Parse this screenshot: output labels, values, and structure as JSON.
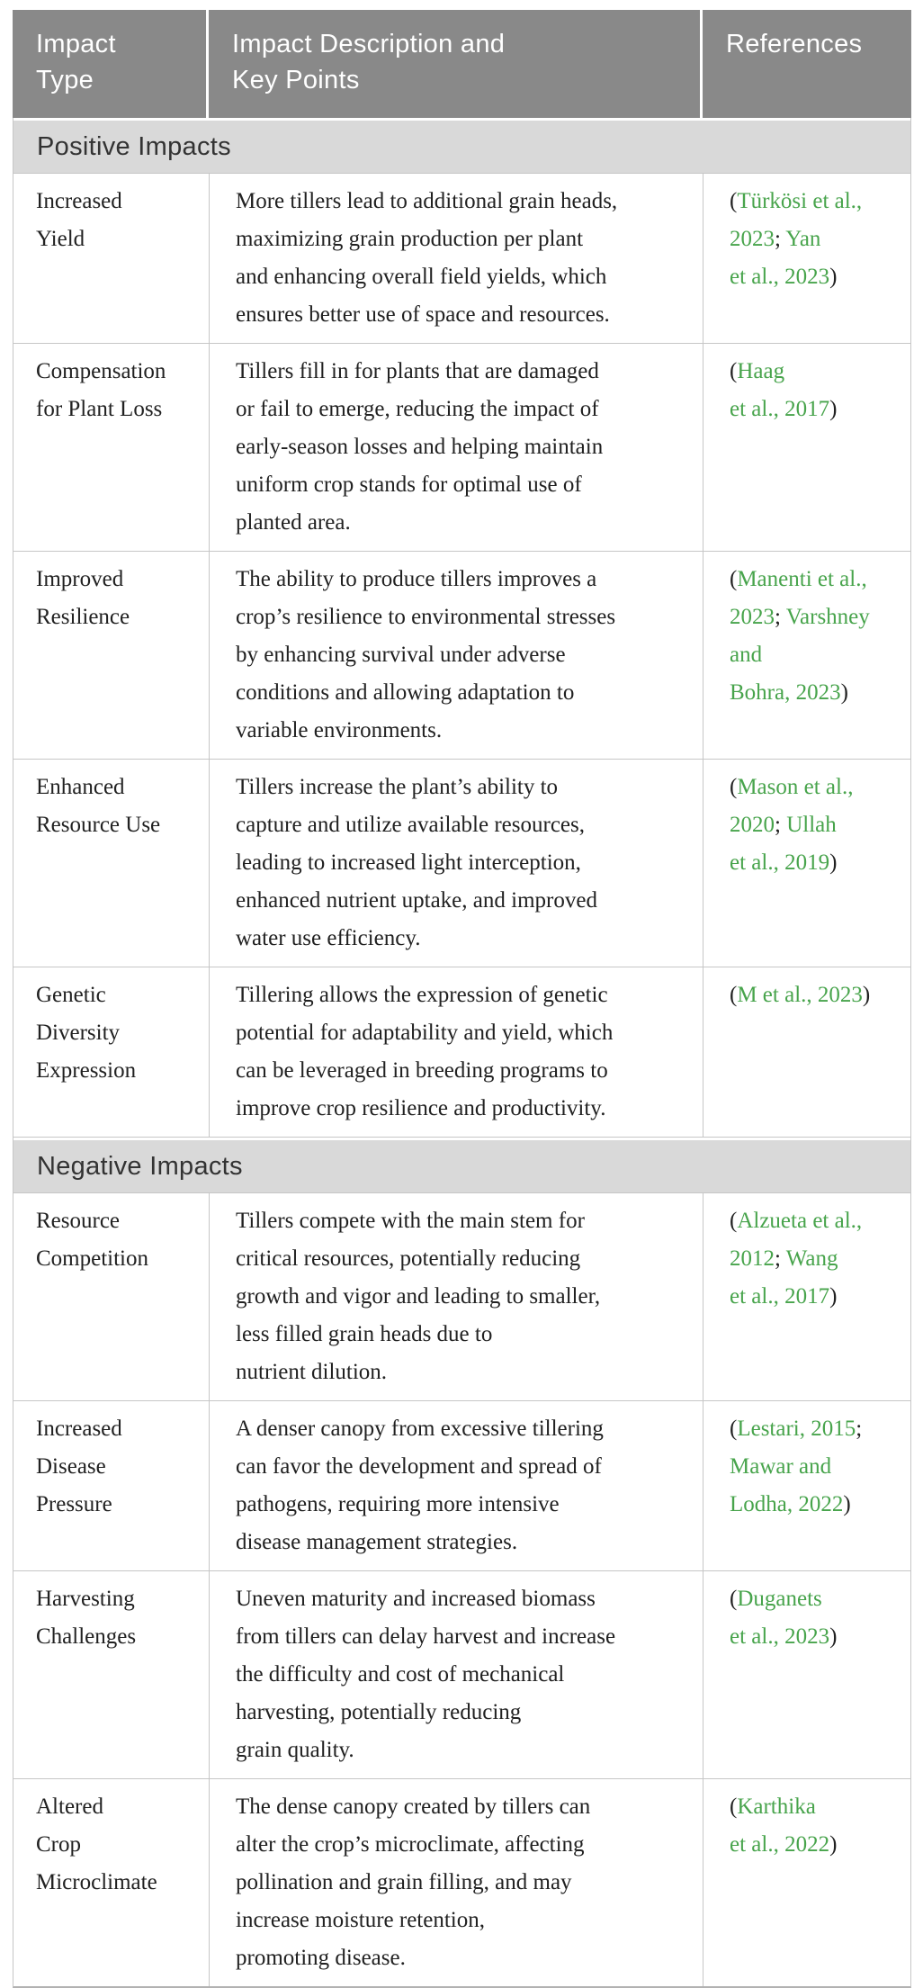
{
  "table": {
    "colors": {
      "header_bg": "#898989",
      "header_text": "#ffffff",
      "section_bg": "#d9d9d9",
      "section_text": "#333333",
      "body_text": "#212121",
      "link_green": "#48a44c",
      "border": "#c6c6c6"
    },
    "columns": [
      {
        "label": "Impact\nType"
      },
      {
        "label": "Impact Description and\nKey Points"
      },
      {
        "label": "References"
      }
    ],
    "sections": [
      {
        "title": "Positive Impacts",
        "rows": [
          {
            "impact_type": "Increased\nYield",
            "description": "More tillers lead to additional grain heads,\nmaximizing grain production per plant\nand enhancing overall field yields, which\nensures better use of space and resources.",
            "reference_segments": [
              {
                "text": "(",
                "link": false
              },
              {
                "text": "Türkösi et al.,\n2023",
                "link": true
              },
              {
                "text": "; ",
                "link": false
              },
              {
                "text": "Yan\net al., 2023",
                "link": true
              },
              {
                "text": ")",
                "link": false
              }
            ]
          },
          {
            "impact_type": "Compensation\nfor Plant Loss",
            "description": "Tillers fill in for plants that are damaged\nor fail to emerge, reducing the impact of\nearly-season losses and helping maintain\nuniform crop stands for optimal use of\nplanted area.",
            "reference_segments": [
              {
                "text": "(",
                "link": false
              },
              {
                "text": "Haag\net al., 2017",
                "link": true
              },
              {
                "text": ")",
                "link": false
              }
            ]
          },
          {
            "impact_type": "Improved\nResilience",
            "description": "The ability to produce tillers improves a\ncrop’s resilience to environmental stresses\nby enhancing survival under adverse\nconditions and allowing adaptation to\nvariable environments.",
            "reference_segments": [
              {
                "text": "(",
                "link": false
              },
              {
                "text": "Manenti et al.,\n2023",
                "link": true
              },
              {
                "text": "; ",
                "link": false
              },
              {
                "text": "Varshney\nand\nBohra, 2023",
                "link": true
              },
              {
                "text": ")",
                "link": false
              }
            ]
          },
          {
            "impact_type": "Enhanced\nResource Use",
            "description": "Tillers increase the plant’s ability to\ncapture and utilize available resources,\nleading to increased light interception,\nenhanced nutrient uptake, and improved\nwater use efficiency.",
            "reference_segments": [
              {
                "text": "(",
                "link": false
              },
              {
                "text": "Mason et al.,\n2020",
                "link": true
              },
              {
                "text": "; ",
                "link": false
              },
              {
                "text": "Ullah\net al., 2019",
                "link": true
              },
              {
                "text": ")",
                "link": false
              }
            ]
          },
          {
            "impact_type": "Genetic\nDiversity\nExpression",
            "description": "Tillering allows the expression of genetic\npotential for adaptability and yield, which\ncan be leveraged in breeding programs to\nimprove crop resilience and productivity.",
            "reference_segments": [
              {
                "text": "(",
                "link": false
              },
              {
                "text": "M et al., 2023",
                "link": true
              },
              {
                "text": ")",
                "link": false
              }
            ]
          }
        ]
      },
      {
        "title": "Negative Impacts",
        "rows": [
          {
            "impact_type": "Resource\nCompetition",
            "description": "Tillers compete with the main stem for\ncritical resources, potentially reducing\ngrowth and vigor and leading to smaller,\nless filled grain heads due to\nnutrient dilution.",
            "reference_segments": [
              {
                "text": "(",
                "link": false
              },
              {
                "text": "Alzueta et al.,\n2012",
                "link": true
              },
              {
                "text": "; ",
                "link": false
              },
              {
                "text": "Wang\net al., 2017",
                "link": true
              },
              {
                "text": ")",
                "link": false
              }
            ]
          },
          {
            "impact_type": "Increased\nDisease\nPressure",
            "description": "A denser canopy from excessive tillering\ncan favor the development and spread of\npathogens, requiring more intensive\ndisease management strategies.",
            "reference_segments": [
              {
                "text": "(",
                "link": false
              },
              {
                "text": "Lestari, 2015",
                "link": true
              },
              {
                "text": ";\n",
                "link": false
              },
              {
                "text": "Mawar and\nLodha, 2022",
                "link": true
              },
              {
                "text": ")",
                "link": false
              }
            ]
          },
          {
            "impact_type": "Harvesting\nChallenges",
            "description": "Uneven maturity and increased biomass\nfrom tillers can delay harvest and increase\nthe difficulty and cost of mechanical\nharvesting, potentially reducing\ngrain quality.",
            "reference_segments": [
              {
                "text": "(",
                "link": false
              },
              {
                "text": "Duganets\net al., 2023",
                "link": true
              },
              {
                "text": ")",
                "link": false
              }
            ]
          },
          {
            "impact_type": "Altered\nCrop\nMicroclimate",
            "description": "The dense canopy created by tillers can\nalter the crop’s microclimate, affecting\npollination and grain filling, and may\nincrease moisture retention,\npromoting disease.",
            "reference_segments": [
              {
                "text": "(",
                "link": false
              },
              {
                "text": "Karthika\net al., 2022",
                "link": true
              },
              {
                "text": ")",
                "link": false
              }
            ]
          }
        ]
      }
    ]
  }
}
